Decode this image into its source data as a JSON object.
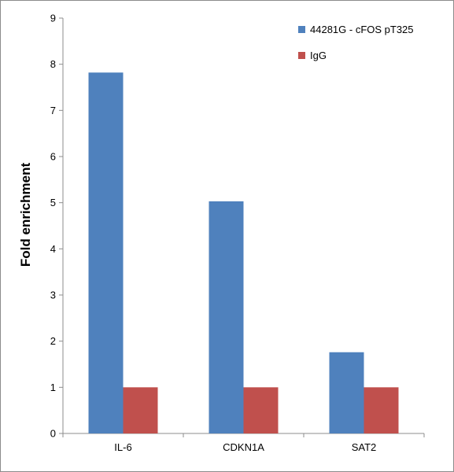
{
  "chart_data": {
    "type": "bar",
    "ylabel": "Fold enrichment",
    "xlabel": "",
    "categories": [
      "IL-6",
      "CDKN1A",
      "SAT2"
    ],
    "series": [
      {
        "name": "44281G - cFOS pT325",
        "color": "#4f81bd",
        "values": [
          7.82,
          5.03,
          1.76
        ]
      },
      {
        "name": "IgG",
        "color": "#c0504d",
        "values": [
          1.0,
          1.0,
          1.0
        ]
      }
    ],
    "ylim": [
      0,
      9
    ],
    "yticks": [
      0,
      1,
      2,
      3,
      4,
      5,
      6,
      7,
      8,
      9
    ],
    "grid": false,
    "legend_position": "top-right"
  }
}
